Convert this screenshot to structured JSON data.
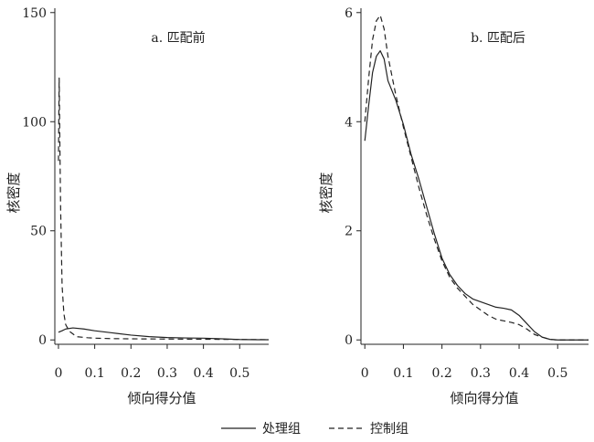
{
  "chart_data": [
    {
      "type": "line",
      "title": "a. 匹配前",
      "xlabel": "倾向得分值",
      "ylabel": "核密度",
      "xlim": [
        -0.01,
        0.58
      ],
      "ylim": [
        -2,
        152
      ],
      "xticks": [
        0,
        0.1,
        0.2,
        0.3,
        0.4,
        0.5
      ],
      "xtick_labels": [
        "0",
        "0.1",
        "0.2",
        "0.3",
        "0.4",
        "0.5"
      ],
      "yticks": [
        0,
        50,
        100,
        150
      ],
      "ytick_labels": [
        "0",
        "50",
        "100",
        "150"
      ],
      "grid": false,
      "series": [
        {
          "name": "处理组",
          "style": "solid",
          "x": [
            0.0,
            0.01,
            0.02,
            0.04,
            0.07,
            0.1,
            0.15,
            0.2,
            0.25,
            0.3,
            0.35,
            0.4,
            0.45,
            0.5,
            0.55,
            0.58
          ],
          "y": [
            3.5,
            4.2,
            5.0,
            5.5,
            5.0,
            4.2,
            3.2,
            2.2,
            1.5,
            1.1,
            0.9,
            0.8,
            0.5,
            0.2,
            0.1,
            0.1
          ]
        },
        {
          "name": "控制组",
          "style": "dashed",
          "x": [
            0.0,
            0.001,
            0.002,
            0.003,
            0.004,
            0.006,
            0.01,
            0.015,
            0.02,
            0.03,
            0.05,
            0.08,
            0.1,
            0.15,
            0.2,
            0.3,
            0.4,
            0.5,
            0.58
          ],
          "y": [
            82,
            102,
            120,
            105,
            88,
            60,
            25,
            12,
            7,
            4,
            1.5,
            1.0,
            0.8,
            0.6,
            0.5,
            0.4,
            0.3,
            0.2,
            0.1
          ]
        }
      ]
    },
    {
      "type": "line",
      "title": "b. 匹配后",
      "xlabel": "倾向得分值",
      "ylabel": "核密度",
      "xlim": [
        -0.01,
        0.58
      ],
      "ylim": [
        -0.08,
        6.08
      ],
      "xticks": [
        0,
        0.1,
        0.2,
        0.3,
        0.4,
        0.5
      ],
      "xtick_labels": [
        "0",
        "0.1",
        "0.2",
        "0.3",
        "0.4",
        "0.5"
      ],
      "yticks": [
        0,
        2,
        4,
        6
      ],
      "ytick_labels": [
        "0",
        "2",
        "4",
        "6"
      ],
      "grid": false,
      "series": [
        {
          "name": "处理组",
          "style": "solid",
          "x": [
            0.0,
            0.01,
            0.02,
            0.03,
            0.04,
            0.05,
            0.06,
            0.08,
            0.1,
            0.12,
            0.14,
            0.16,
            0.18,
            0.2,
            0.22,
            0.24,
            0.26,
            0.28,
            0.3,
            0.32,
            0.34,
            0.36,
            0.38,
            0.4,
            0.42,
            0.44,
            0.46,
            0.48,
            0.5,
            0.52,
            0.55,
            0.58
          ],
          "y": [
            3.65,
            4.3,
            4.9,
            5.2,
            5.3,
            5.15,
            4.75,
            4.4,
            3.95,
            3.4,
            2.95,
            2.45,
            1.95,
            1.5,
            1.2,
            1.0,
            0.85,
            0.75,
            0.7,
            0.65,
            0.6,
            0.58,
            0.55,
            0.45,
            0.3,
            0.15,
            0.05,
            0.01,
            0.0,
            0.0,
            0.0,
            0.0
          ]
        },
        {
          "name": "控制组",
          "style": "dashed",
          "x": [
            0.0,
            0.01,
            0.02,
            0.03,
            0.04,
            0.05,
            0.06,
            0.08,
            0.1,
            0.12,
            0.14,
            0.16,
            0.18,
            0.2,
            0.22,
            0.24,
            0.26,
            0.28,
            0.3,
            0.32,
            0.34,
            0.36,
            0.38,
            0.4,
            0.42,
            0.44,
            0.46,
            0.48,
            0.5,
            0.52,
            0.55,
            0.58
          ],
          "y": [
            4.0,
            4.8,
            5.5,
            5.85,
            5.95,
            5.7,
            5.2,
            4.5,
            3.9,
            3.35,
            2.8,
            2.3,
            1.85,
            1.45,
            1.15,
            0.95,
            0.8,
            0.65,
            0.55,
            0.45,
            0.38,
            0.35,
            0.32,
            0.28,
            0.2,
            0.1,
            0.05,
            0.01,
            0.0,
            0.0,
            0.0,
            0.0
          ]
        }
      ]
    }
  ],
  "legend": {
    "position": "bottom",
    "items": [
      {
        "label": "处理组",
        "style": "solid"
      },
      {
        "label": "控制组",
        "style": "dashed"
      }
    ]
  }
}
